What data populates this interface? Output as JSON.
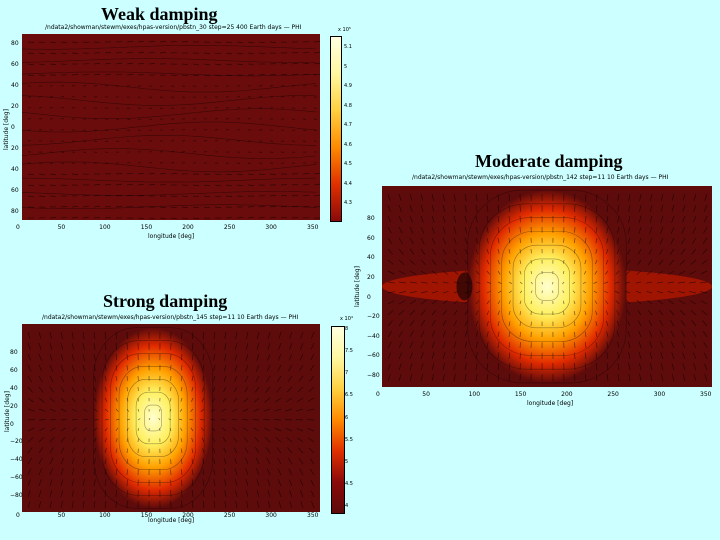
{
  "captions": {
    "weak": "Weak damping",
    "moderate": "Moderate damping",
    "strong": "Strong damping"
  },
  "panels": {
    "weak": {
      "header": "/ndata2/showman/stewm/exes/hpas-version/pbstn_30  step=25      400 Earth days      —  PHI",
      "xlabel": "longitude [deg]",
      "ylabel": "latitude [deg]",
      "xticks": [
        "0",
        "50",
        "100",
        "150",
        "200",
        "250",
        "300",
        "350"
      ],
      "yticks": [
        "80",
        "60",
        "40",
        "20",
        "0",
        "20",
        "40",
        "60",
        "80"
      ],
      "colorbar_exponent": "x 10⁵",
      "colorbar_ticks": [
        "5.1",
        "5",
        "4.9",
        "4.8",
        "4.7",
        "4.6",
        "4.5",
        "4.4",
        "4.3"
      ],
      "colors": {
        "hot": "#fff3a8",
        "mid": "#ff5500",
        "cold": "#6b0c0c"
      }
    },
    "moderate": {
      "header": "/ndata2/showman/stewm/exes/hpas-version/pbstn_142  step=11      10 Earth days      —  PHI",
      "xlabel": "longitude [deg]",
      "ylabel": "latitude [deg]",
      "xticks": [
        "0",
        "50",
        "100",
        "150",
        "200",
        "250",
        "300",
        "350"
      ],
      "yticks": [
        "80",
        "60",
        "40",
        "20",
        "0",
        "−20",
        "−40",
        "−60",
        "−80"
      ],
      "colors": {
        "hot": "#ffffb0",
        "mid": "#ff4a00",
        "cold": "#5e0b0b"
      }
    },
    "strong": {
      "header": "/ndata2/showman/stewm/exes/hpas-version/pbstn_145  step=11      10 Earth days      —  PHI",
      "xlabel": "longitude [deg]",
      "ylabel": "latitude [deg]",
      "xticks": [
        "0",
        "50",
        "100",
        "150",
        "200",
        "250",
        "300",
        "350"
      ],
      "yticks": [
        "80",
        "60",
        "40",
        "20",
        "0",
        "−20",
        "−40",
        "−60",
        "−80"
      ],
      "colorbar_exponent": "x 10⁴",
      "colorbar_ticks": [
        "8",
        "7.5",
        "7",
        "6.5",
        "6",
        "5.5",
        "5",
        "4.5",
        "4"
      ],
      "colors": {
        "hot": "#ffffb0",
        "mid": "#ff4a00",
        "cold": "#5e0b0b"
      }
    }
  }
}
